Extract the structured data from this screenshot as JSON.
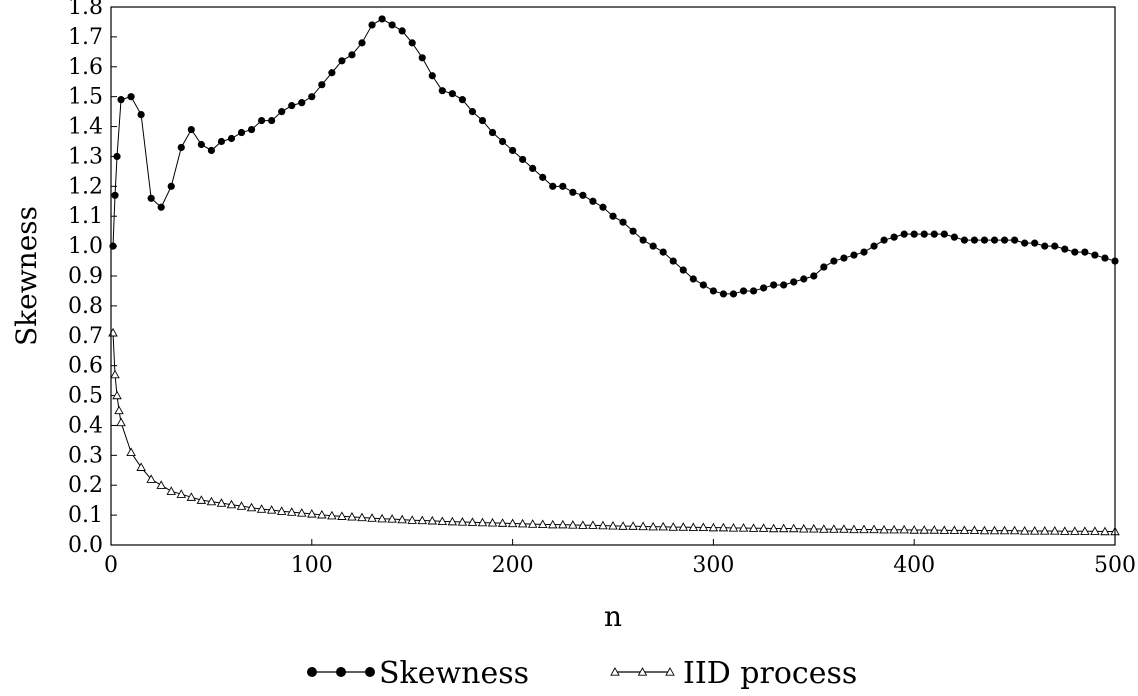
{
  "chart_data": {
    "type": "line",
    "title": "",
    "xlabel": "n",
    "ylabel": "Skewness",
    "xlim": [
      0,
      500
    ],
    "ylim": [
      0.0,
      1.8
    ],
    "xticks": [
      0,
      100,
      200,
      300,
      400,
      500
    ],
    "xtick_labels": [
      "0",
      "100",
      "200",
      "300",
      "400",
      "500"
    ],
    "yticks": [
      0.0,
      0.1,
      0.2,
      0.3,
      0.4,
      0.5,
      0.6,
      0.7,
      0.8,
      0.9,
      1.0,
      1.1,
      1.2,
      1.3,
      1.4,
      1.5,
      1.6,
      1.7,
      1.8
    ],
    "ytick_labels": [
      "0.0",
      "0.1",
      "0.2",
      "0.3",
      "0.4",
      "0.5",
      "0.6",
      "0.7",
      "0.8",
      "0.9",
      "1.0",
      "1.1",
      "1.2",
      "1.3",
      "1.4",
      "1.5",
      "1.6",
      "1.7",
      "1.8"
    ],
    "grid": false,
    "legend_position": "bottom-center",
    "series": [
      {
        "name": "Skewness",
        "marker": "filled-circle",
        "color": "#000000",
        "x": [
          1,
          2,
          3,
          5,
          10,
          15,
          20,
          25,
          30,
          35,
          40,
          45,
          50,
          55,
          60,
          65,
          70,
          75,
          80,
          85,
          90,
          95,
          100,
          105,
          110,
          115,
          120,
          125,
          130,
          135,
          140,
          145,
          150,
          155,
          160,
          165,
          170,
          175,
          180,
          185,
          190,
          195,
          200,
          205,
          210,
          215,
          220,
          225,
          230,
          235,
          240,
          245,
          250,
          255,
          260,
          265,
          270,
          275,
          280,
          285,
          290,
          295,
          300,
          305,
          310,
          315,
          320,
          325,
          330,
          335,
          340,
          345,
          350,
          355,
          360,
          365,
          370,
          375,
          380,
          385,
          390,
          395,
          400,
          405,
          410,
          415,
          420,
          425,
          430,
          435,
          440,
          445,
          450,
          455,
          460,
          465,
          470,
          475,
          480,
          485,
          490,
          495,
          500
        ],
        "y": [
          1.0,
          1.17,
          1.3,
          1.49,
          1.5,
          1.44,
          1.16,
          1.13,
          1.2,
          1.33,
          1.39,
          1.34,
          1.32,
          1.35,
          1.36,
          1.38,
          1.39,
          1.42,
          1.42,
          1.45,
          1.47,
          1.48,
          1.5,
          1.54,
          1.58,
          1.62,
          1.64,
          1.68,
          1.74,
          1.76,
          1.74,
          1.72,
          1.68,
          1.63,
          1.57,
          1.52,
          1.51,
          1.49,
          1.45,
          1.42,
          1.38,
          1.35,
          1.32,
          1.29,
          1.26,
          1.23,
          1.2,
          1.2,
          1.18,
          1.17,
          1.15,
          1.13,
          1.1,
          1.08,
          1.05,
          1.02,
          1.0,
          0.98,
          0.95,
          0.92,
          0.89,
          0.87,
          0.85,
          0.84,
          0.84,
          0.85,
          0.85,
          0.86,
          0.87,
          0.87,
          0.88,
          0.89,
          0.9,
          0.93,
          0.95,
          0.96,
          0.97,
          0.98,
          1.0,
          1.02,
          1.03,
          1.04,
          1.04,
          1.04,
          1.04,
          1.04,
          1.03,
          1.02,
          1.02,
          1.02,
          1.02,
          1.02,
          1.02,
          1.01,
          1.01,
          1.0,
          1.0,
          0.99,
          0.98,
          0.98,
          0.97,
          0.96,
          0.95
        ]
      },
      {
        "name": "IID process",
        "marker": "open-triangle",
        "color": "#000000",
        "x": [
          1,
          2,
          3,
          4,
          5,
          10,
          15,
          20,
          25,
          30,
          35,
          40,
          45,
          50,
          55,
          60,
          65,
          70,
          75,
          80,
          85,
          90,
          95,
          100,
          105,
          110,
          115,
          120,
          125,
          130,
          135,
          140,
          145,
          150,
          155,
          160,
          165,
          170,
          175,
          180,
          185,
          190,
          195,
          200,
          205,
          210,
          215,
          220,
          225,
          230,
          235,
          240,
          245,
          250,
          255,
          260,
          265,
          270,
          275,
          280,
          285,
          290,
          295,
          300,
          305,
          310,
          315,
          320,
          325,
          330,
          335,
          340,
          345,
          350,
          355,
          360,
          365,
          370,
          375,
          380,
          385,
          390,
          395,
          400,
          405,
          410,
          415,
          420,
          425,
          430,
          435,
          440,
          445,
          450,
          455,
          460,
          465,
          470,
          475,
          480,
          485,
          490,
          495,
          500
        ],
        "y": [
          0.71,
          0.57,
          0.5,
          0.45,
          0.41,
          0.31,
          0.26,
          0.22,
          0.2,
          0.18,
          0.17,
          0.16,
          0.15,
          0.145,
          0.14,
          0.135,
          0.13,
          0.125,
          0.12,
          0.117,
          0.113,
          0.11,
          0.107,
          0.104,
          0.101,
          0.098,
          0.096,
          0.094,
          0.092,
          0.09,
          0.088,
          0.087,
          0.085,
          0.083,
          0.082,
          0.081,
          0.079,
          0.078,
          0.077,
          0.076,
          0.075,
          0.074,
          0.073,
          0.072,
          0.071,
          0.07,
          0.069,
          0.068,
          0.068,
          0.067,
          0.066,
          0.066,
          0.065,
          0.064,
          0.063,
          0.063,
          0.062,
          0.061,
          0.061,
          0.06,
          0.06,
          0.059,
          0.059,
          0.058,
          0.058,
          0.057,
          0.057,
          0.056,
          0.056,
          0.055,
          0.055,
          0.055,
          0.054,
          0.054,
          0.053,
          0.053,
          0.053,
          0.052,
          0.052,
          0.052,
          0.051,
          0.051,
          0.051,
          0.05,
          0.05,
          0.05,
          0.049,
          0.049,
          0.049,
          0.049,
          0.048,
          0.048,
          0.048,
          0.048,
          0.047,
          0.047,
          0.047,
          0.047,
          0.046,
          0.046,
          0.046,
          0.046,
          0.045,
          0.045
        ]
      }
    ]
  }
}
